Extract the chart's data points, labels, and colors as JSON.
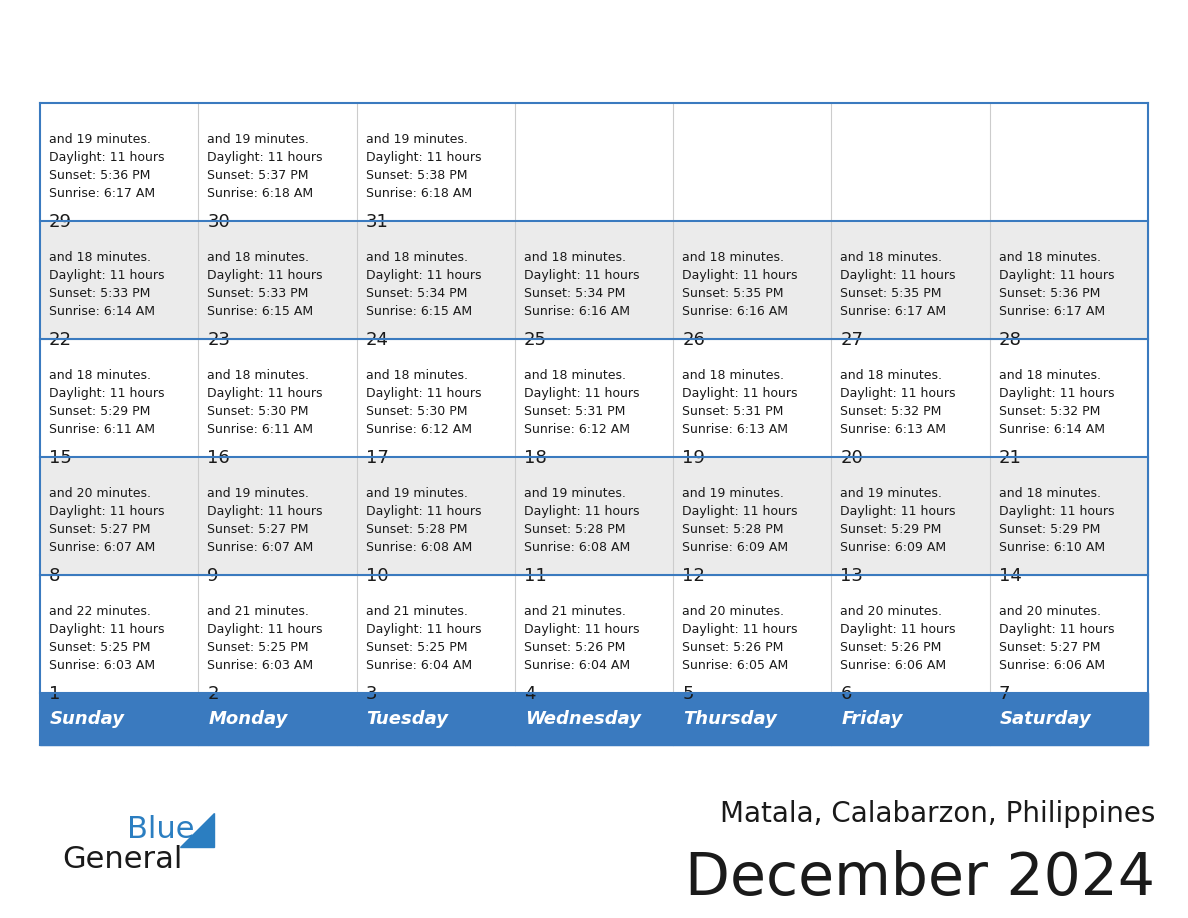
{
  "title": "December 2024",
  "subtitle": "Matala, Calabarzon, Philippines",
  "header_color": "#3a7abf",
  "header_text_color": "#FFFFFF",
  "cell_bg_even": "#FFFFFF",
  "cell_bg_odd": "#ebebeb",
  "border_color": "#3a7abf",
  "row_line_color": "#3a7abf",
  "day_headers": [
    "Sunday",
    "Monday",
    "Tuesday",
    "Wednesday",
    "Thursday",
    "Friday",
    "Saturday"
  ],
  "logo_color1": "#1a1a1a",
  "logo_color2": "#2B7EC1",
  "logo_triangle_color": "#2B7EC1",
  "days": [
    {
      "day": 1,
      "col": 0,
      "row": 0,
      "sunrise": "6:03 AM",
      "sunset": "5:25 PM",
      "daylight": "11 hours and 22 minutes."
    },
    {
      "day": 2,
      "col": 1,
      "row": 0,
      "sunrise": "6:03 AM",
      "sunset": "5:25 PM",
      "daylight": "11 hours and 21 minutes."
    },
    {
      "day": 3,
      "col": 2,
      "row": 0,
      "sunrise": "6:04 AM",
      "sunset": "5:25 PM",
      "daylight": "11 hours and 21 minutes."
    },
    {
      "day": 4,
      "col": 3,
      "row": 0,
      "sunrise": "6:04 AM",
      "sunset": "5:26 PM",
      "daylight": "11 hours and 21 minutes."
    },
    {
      "day": 5,
      "col": 4,
      "row": 0,
      "sunrise": "6:05 AM",
      "sunset": "5:26 PM",
      "daylight": "11 hours and 20 minutes."
    },
    {
      "day": 6,
      "col": 5,
      "row": 0,
      "sunrise": "6:06 AM",
      "sunset": "5:26 PM",
      "daylight": "11 hours and 20 minutes."
    },
    {
      "day": 7,
      "col": 6,
      "row": 0,
      "sunrise": "6:06 AM",
      "sunset": "5:27 PM",
      "daylight": "11 hours and 20 minutes."
    },
    {
      "day": 8,
      "col": 0,
      "row": 1,
      "sunrise": "6:07 AM",
      "sunset": "5:27 PM",
      "daylight": "11 hours and 20 minutes."
    },
    {
      "day": 9,
      "col": 1,
      "row": 1,
      "sunrise": "6:07 AM",
      "sunset": "5:27 PM",
      "daylight": "11 hours and 19 minutes."
    },
    {
      "day": 10,
      "col": 2,
      "row": 1,
      "sunrise": "6:08 AM",
      "sunset": "5:28 PM",
      "daylight": "11 hours and 19 minutes."
    },
    {
      "day": 11,
      "col": 3,
      "row": 1,
      "sunrise": "6:08 AM",
      "sunset": "5:28 PM",
      "daylight": "11 hours and 19 minutes."
    },
    {
      "day": 12,
      "col": 4,
      "row": 1,
      "sunrise": "6:09 AM",
      "sunset": "5:28 PM",
      "daylight": "11 hours and 19 minutes."
    },
    {
      "day": 13,
      "col": 5,
      "row": 1,
      "sunrise": "6:09 AM",
      "sunset": "5:29 PM",
      "daylight": "11 hours and 19 minutes."
    },
    {
      "day": 14,
      "col": 6,
      "row": 1,
      "sunrise": "6:10 AM",
      "sunset": "5:29 PM",
      "daylight": "11 hours and 18 minutes."
    },
    {
      "day": 15,
      "col": 0,
      "row": 2,
      "sunrise": "6:11 AM",
      "sunset": "5:29 PM",
      "daylight": "11 hours and 18 minutes."
    },
    {
      "day": 16,
      "col": 1,
      "row": 2,
      "sunrise": "6:11 AM",
      "sunset": "5:30 PM",
      "daylight": "11 hours and 18 minutes."
    },
    {
      "day": 17,
      "col": 2,
      "row": 2,
      "sunrise": "6:12 AM",
      "sunset": "5:30 PM",
      "daylight": "11 hours and 18 minutes."
    },
    {
      "day": 18,
      "col": 3,
      "row": 2,
      "sunrise": "6:12 AM",
      "sunset": "5:31 PM",
      "daylight": "11 hours and 18 minutes."
    },
    {
      "day": 19,
      "col": 4,
      "row": 2,
      "sunrise": "6:13 AM",
      "sunset": "5:31 PM",
      "daylight": "11 hours and 18 minutes."
    },
    {
      "day": 20,
      "col": 5,
      "row": 2,
      "sunrise": "6:13 AM",
      "sunset": "5:32 PM",
      "daylight": "11 hours and 18 minutes."
    },
    {
      "day": 21,
      "col": 6,
      "row": 2,
      "sunrise": "6:14 AM",
      "sunset": "5:32 PM",
      "daylight": "11 hours and 18 minutes."
    },
    {
      "day": 22,
      "col": 0,
      "row": 3,
      "sunrise": "6:14 AM",
      "sunset": "5:33 PM",
      "daylight": "11 hours and 18 minutes."
    },
    {
      "day": 23,
      "col": 1,
      "row": 3,
      "sunrise": "6:15 AM",
      "sunset": "5:33 PM",
      "daylight": "11 hours and 18 minutes."
    },
    {
      "day": 24,
      "col": 2,
      "row": 3,
      "sunrise": "6:15 AM",
      "sunset": "5:34 PM",
      "daylight": "11 hours and 18 minutes."
    },
    {
      "day": 25,
      "col": 3,
      "row": 3,
      "sunrise": "6:16 AM",
      "sunset": "5:34 PM",
      "daylight": "11 hours and 18 minutes."
    },
    {
      "day": 26,
      "col": 4,
      "row": 3,
      "sunrise": "6:16 AM",
      "sunset": "5:35 PM",
      "daylight": "11 hours and 18 minutes."
    },
    {
      "day": 27,
      "col": 5,
      "row": 3,
      "sunrise": "6:17 AM",
      "sunset": "5:35 PM",
      "daylight": "11 hours and 18 minutes."
    },
    {
      "day": 28,
      "col": 6,
      "row": 3,
      "sunrise": "6:17 AM",
      "sunset": "5:36 PM",
      "daylight": "11 hours and 18 minutes."
    },
    {
      "day": 29,
      "col": 0,
      "row": 4,
      "sunrise": "6:17 AM",
      "sunset": "5:36 PM",
      "daylight": "11 hours and 19 minutes."
    },
    {
      "day": 30,
      "col": 1,
      "row": 4,
      "sunrise": "6:18 AM",
      "sunset": "5:37 PM",
      "daylight": "11 hours and 19 minutes."
    },
    {
      "day": 31,
      "col": 2,
      "row": 4,
      "sunrise": "6:18 AM",
      "sunset": "5:38 PM",
      "daylight": "11 hours and 19 minutes."
    }
  ]
}
